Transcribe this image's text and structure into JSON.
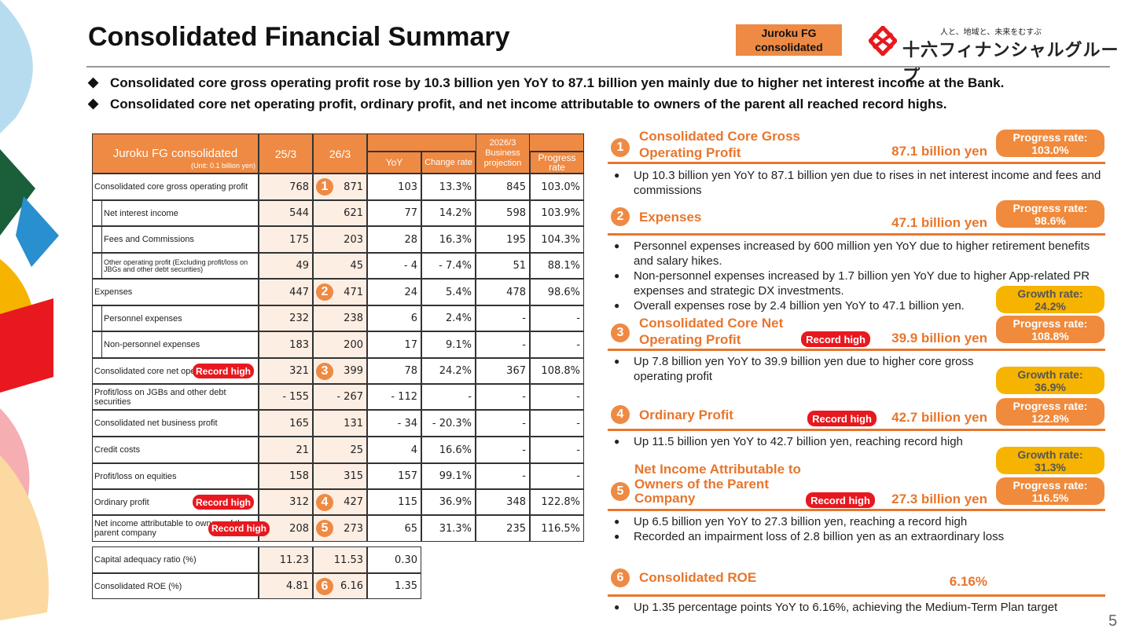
{
  "header": {
    "title": "Consolidated Financial Summary",
    "badge": "Juroku FG consolidated",
    "logo_tagline": "人と、地域と、未来をむすぶ",
    "logo_name": "十六フィナンシャルグループ"
  },
  "bullets": [
    "Consolidated core gross operating profit rose by 10.3 billion yen YoY to 87.1 billion yen mainly due to higher net interest income at the Bank.",
    "Consolidated core net operating profit, ordinary profit, and net income attributable to owners of the parent all reached record highs."
  ],
  "table": {
    "title": "Juroku FG consolidated",
    "unit": "(Unit: 0.1 billion yen)",
    "columns": [
      "25/3",
      "26/3",
      "YoY",
      "Change rate",
      "2026/3 Business projection",
      "Progress rate"
    ],
    "rows": [
      {
        "label": "Consolidated core gross operating profit",
        "cells": [
          "768",
          "871",
          "103",
          "13.3%",
          "845",
          "103.0%"
        ],
        "marker": "1"
      },
      {
        "label": "Net interest income",
        "cells": [
          "544",
          "621",
          "77",
          "14.2%",
          "598",
          "103.9%"
        ]
      },
      {
        "label": "Fees and Commissions",
        "cells": [
          "175",
          "203",
          "28",
          "16.3%",
          "195",
          "104.3%"
        ]
      },
      {
        "label": "Other operating profit (Excluding profit/loss on JBGs and other debt securities)",
        "cells": [
          "49",
          "45",
          "- 4",
          "- 7.4%",
          "51",
          "88.1%"
        ]
      },
      {
        "label": "Expenses",
        "cells": [
          "447",
          "471",
          "24",
          "5.4%",
          "478",
          "98.6%"
        ],
        "marker": "2"
      },
      {
        "label": "Personnel expenses",
        "cells": [
          "232",
          "238",
          "6",
          "2.4%",
          "-",
          "-"
        ]
      },
      {
        "label": "Non-personnel expenses",
        "cells": [
          "183",
          "200",
          "17",
          "9.1%",
          "-",
          "-"
        ]
      },
      {
        "label": "Consolidated core net operating profit",
        "cells": [
          "321",
          "399",
          "78",
          "24.2%",
          "367",
          "108.8%"
        ],
        "marker": "3",
        "badge": "Record high"
      },
      {
        "label": "Profit/loss on JGBs and other debt securities",
        "cells": [
          "- 155",
          "- 267",
          "- 112",
          "-",
          "-",
          "-"
        ]
      },
      {
        "label": "Consolidated net business profit",
        "cells": [
          "165",
          "131",
          "- 34",
          "- 20.3%",
          "-",
          "-"
        ]
      },
      {
        "label": "Credit costs",
        "cells": [
          "21",
          "25",
          "4",
          "16.6%",
          "-",
          "-"
        ]
      },
      {
        "label": "Profit/loss on equities",
        "cells": [
          "158",
          "315",
          "157",
          "99.1%",
          "-",
          "-"
        ]
      },
      {
        "label": "Ordinary profit",
        "cells": [
          "312",
          "427",
          "115",
          "36.9%",
          "348",
          "122.8%"
        ],
        "marker": "4",
        "badge": "Record high"
      },
      {
        "label": "Net income attributable to owners of the parent company",
        "cells": [
          "208",
          "273",
          "65",
          "31.3%",
          "235",
          "116.5%"
        ],
        "marker": "5",
        "badge": "Record high"
      }
    ]
  },
  "ratios": {
    "rows": [
      {
        "label": "Capital adequacy ratio (%)",
        "cells": [
          "11.23",
          "11.53",
          "0.30"
        ]
      },
      {
        "label": "Consolidated ROE (%)",
        "cells": [
          "4.81",
          "6.16",
          "1.35"
        ],
        "marker": "6"
      }
    ]
  },
  "highlights": [
    {
      "number": "1",
      "title": "Consolidated Core Gross Operating Profit",
      "value": "87.1 billion yen",
      "progress": "Progress rate: 103.0%",
      "bullets": [
        "Up 10.3 billion yen YoY to 87.1 billion yen due to rises in net interest income and fees and commissions"
      ]
    },
    {
      "number": "2",
      "title": "Expenses",
      "value": "47.1 billion yen",
      "progress": "Progress rate: 98.6%",
      "bullets": [
        "Personnel expenses increased by 600 million yen YoY due to higher retirement benefits and salary hikes.",
        "Non-personnel expenses increased by 1.7 billion yen YoY due to higher App-related PR expenses and strategic DX investments.",
        "Overall expenses rose by 2.4 billion yen YoY to 47.1 billion yen."
      ]
    },
    {
      "number": "3",
      "title": "Consolidated Core Net Operating Profit",
      "value": "39.9 billion yen",
      "record": "Record high",
      "growth": "Growth rate: 24.2%",
      "progress": "Progress rate: 108.8%",
      "bullets": [
        "Up 7.8 billion yen YoY to 39.9 billion yen due to higher core gross operating profit"
      ]
    },
    {
      "number": "4",
      "title": "Ordinary Profit",
      "value": "42.7 billion yen",
      "record": "Record high",
      "growth": "Growth rate: 36.9%",
      "progress": "Progress rate: 122.8%",
      "bullets": [
        "Up 11.5 billion yen YoY to 42.7 billion yen, reaching record high"
      ]
    },
    {
      "number": "5",
      "title": "Net Income Attributable to Owners of the Parent Company",
      "value": "27.3 billion yen",
      "record": "Record high",
      "growth": "Growth rate: 31.3%",
      "progress": "Progress rate: 116.5%",
      "bullets": [
        "Up 6.5 billion yen YoY to 27.3 billion yen, reaching a record high",
        "Recorded an impairment loss of 2.8 billion yen as an extraordinary loss"
      ]
    },
    {
      "number": "6",
      "title": "Consolidated ROE",
      "value": "6.16%",
      "bullets": [
        "Up 1.35 percentage points YoY to 6.16%, achieving the Medium-Term Plan target"
      ]
    }
  ],
  "page_number": "5"
}
